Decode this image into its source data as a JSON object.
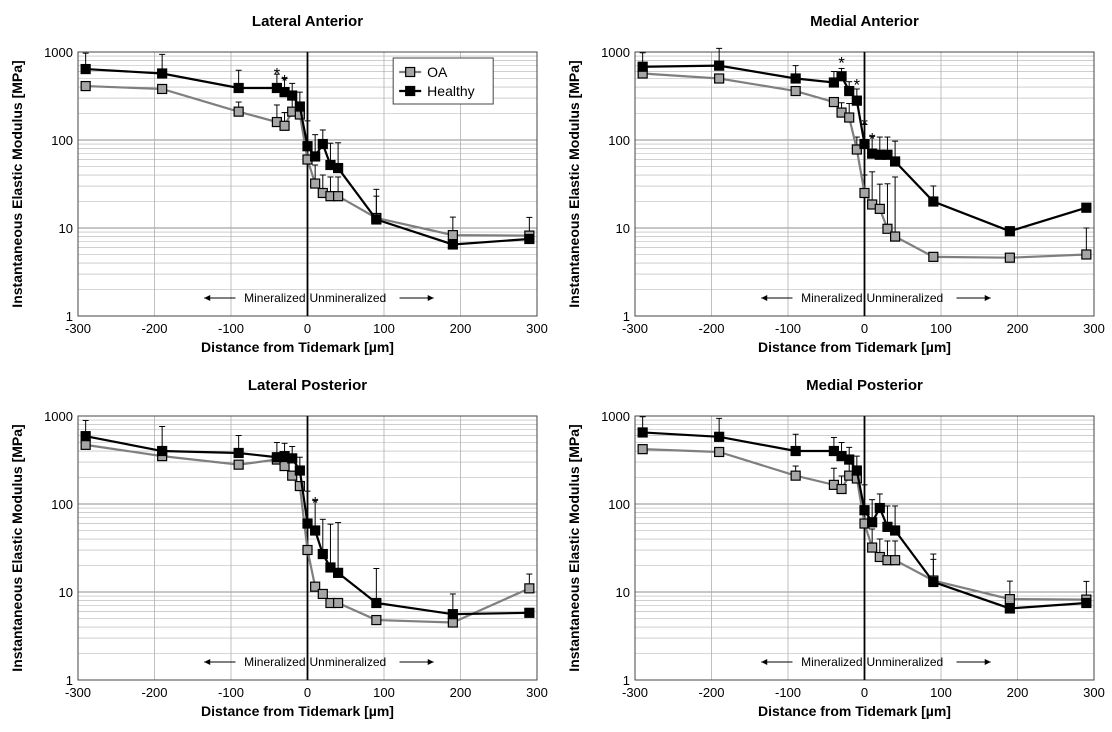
{
  "colors": {
    "oa": "#7f7f7f",
    "healthy": "#000000",
    "oa_fill": "#a6a6a6",
    "grid": "#b0b0b0"
  },
  "region_labels": {
    "left": "Mineralized",
    "right": "Unmineralized"
  },
  "chart_data": [
    {
      "type": "line",
      "title": "Lateral Anterior",
      "xlabel": "Distance from Tidemark [µm]",
      "ylabel": "Instantaneous Elastic Modulus [MPa]",
      "y_scale": "log",
      "xlim": [
        -300,
        300
      ],
      "ylim": [
        1,
        1000
      ],
      "x_ticks": [
        "-300",
        "-200",
        "-100",
        "0",
        "100",
        "200",
        "300"
      ],
      "y_ticks": [
        "1",
        "10",
        "100",
        "1000"
      ],
      "legend": {
        "position": "top-right",
        "show": true
      },
      "x": [
        -290,
        -190,
        -90,
        -40,
        -30,
        -20,
        -10,
        0,
        10,
        20,
        30,
        40,
        90,
        190,
        290
      ],
      "series": [
        {
          "name": "OA",
          "values": [
            410,
            380,
            210,
            160,
            145,
            210,
            195,
            60,
            32,
            25,
            23,
            23,
            13,
            8.3,
            8.2
          ],
          "err": [
            0,
            0,
            60,
            90,
            60,
            80,
            70,
            30,
            20,
            15,
            15,
            15,
            10,
            5,
            5
          ]
        },
        {
          "name": "Healthy",
          "values": [
            640,
            570,
            390,
            390,
            350,
            320,
            240,
            85,
            65,
            90,
            52,
            48,
            12.5,
            6.5,
            7.5
          ],
          "err": [
            330,
            370,
            230,
            170,
            150,
            120,
            110,
            80,
            50,
            40,
            40,
            45,
            15,
            0,
            0
          ]
        }
      ],
      "annotations": [
        {
          "x": -40,
          "y": 600,
          "text": "*"
        },
        {
          "x": -30,
          "y": 500,
          "text": "*"
        }
      ]
    },
    {
      "type": "line",
      "title": "Medial Anterior",
      "xlabel": "Distance from Tidemark [µm]",
      "ylabel": "Instantaneous Elastic Modulus [MPa]",
      "y_scale": "log",
      "xlim": [
        -300,
        300
      ],
      "ylim": [
        1,
        1000
      ],
      "x_ticks": [
        "-300",
        "-200",
        "-100",
        "0",
        "100",
        "200",
        "300"
      ],
      "y_ticks": [
        "1",
        "10",
        "100",
        "1000"
      ],
      "legend": {
        "show": false
      },
      "x": [
        -290,
        -190,
        -90,
        -40,
        -30,
        -20,
        -10,
        0,
        10,
        20,
        30,
        40,
        90,
        190,
        290
      ],
      "series": [
        {
          "name": "OA",
          "values": [
            570,
            500,
            360,
            270,
            205,
            180,
            78,
            25,
            18.5,
            16.5,
            9.8,
            8,
            4.7,
            4.6,
            5
          ],
          "err": [
            0,
            0,
            0,
            0,
            60,
            80,
            30,
            15,
            25,
            15,
            22,
            30,
            0,
            0,
            5
          ]
        },
        {
          "name": "Healthy",
          "values": [
            680,
            700,
            500,
            450,
            530,
            360,
            280,
            90,
            70,
            68,
            68,
            57,
            20,
            9.2,
            17
          ],
          "err": [
            300,
            400,
            200,
            150,
            120,
            100,
            100,
            60,
            40,
            40,
            40,
            40,
            10,
            0,
            0
          ]
        }
      ],
      "annotations": [
        {
          "x": -30,
          "y": 800,
          "text": "*"
        },
        {
          "x": -10,
          "y": 450,
          "text": "*"
        },
        {
          "x": 0,
          "y": 160,
          "text": "*"
        },
        {
          "x": 10,
          "y": 110,
          "text": "*"
        }
      ]
    },
    {
      "type": "line",
      "title": "Lateral Posterior",
      "xlabel": "Distance from Tidemark [µm]",
      "ylabel": "Instantaneous Elastic Modulus [MPa]",
      "y_scale": "log",
      "xlim": [
        -300,
        300
      ],
      "ylim": [
        1,
        1000
      ],
      "x_ticks": [
        "-300",
        "-200",
        "-100",
        "0",
        "100",
        "200",
        "300"
      ],
      "y_ticks": [
        "1",
        "10",
        "100",
        "1000"
      ],
      "legend": {
        "show": false
      },
      "x": [
        -290,
        -190,
        -90,
        -40,
        -30,
        -20,
        -10,
        0,
        10,
        20,
        30,
        40,
        90,
        190,
        290
      ],
      "series": [
        {
          "name": "OA",
          "values": [
            470,
            350,
            280,
            320,
            270,
            210,
            160,
            30,
            11.5,
            9.5,
            7.5,
            7.5,
            4.8,
            4.5,
            11
          ],
          "err": [
            0,
            0,
            0,
            0,
            0,
            0,
            0,
            0,
            0,
            0,
            0,
            0,
            0,
            5,
            5
          ]
        },
        {
          "name": "Healthy",
          "values": [
            590,
            400,
            380,
            340,
            350,
            330,
            240,
            60,
            50,
            27,
            19,
            16.5,
            7.5,
            5.6,
            5.8
          ],
          "err": [
            300,
            360,
            220,
            160,
            140,
            120,
            100,
            80,
            60,
            40,
            40,
            45,
            11,
            0,
            0
          ]
        }
      ],
      "annotations": [
        {
          "x": 10,
          "y": 110,
          "text": "*"
        }
      ]
    },
    {
      "type": "line",
      "title": "Medial Posterior",
      "xlabel": "Distance from Tidemark [µm]",
      "ylabel": "Instantaneous Elastic Modulus [MPa]",
      "y_scale": "log",
      "xlim": [
        -300,
        300
      ],
      "ylim": [
        1,
        1000
      ],
      "x_ticks": [
        "-300",
        "-200",
        "-100",
        "0",
        "100",
        "200",
        "300"
      ],
      "y_ticks": [
        "1",
        "10",
        "100",
        "1000"
      ],
      "legend": {
        "show": false
      },
      "x": [
        -290,
        -190,
        -90,
        -40,
        -30,
        -20,
        -10,
        0,
        10,
        20,
        30,
        40,
        90,
        190,
        290
      ],
      "series": [
        {
          "name": "OA",
          "values": [
            420,
            390,
            210,
            165,
            148,
            210,
            195,
            60,
            32,
            25,
            23,
            23,
            13.5,
            8.3,
            8.2
          ],
          "err": [
            0,
            0,
            60,
            90,
            60,
            80,
            70,
            30,
            20,
            15,
            15,
            15,
            10,
            5,
            5
          ]
        },
        {
          "name": "Healthy",
          "values": [
            650,
            580,
            400,
            400,
            350,
            320,
            240,
            85,
            62,
            90,
            55,
            50,
            13,
            6.5,
            7.5
          ],
          "err": [
            330,
            360,
            220,
            170,
            150,
            120,
            110,
            80,
            50,
            40,
            40,
            45,
            14,
            0,
            0
          ]
        }
      ],
      "annotations": []
    }
  ]
}
